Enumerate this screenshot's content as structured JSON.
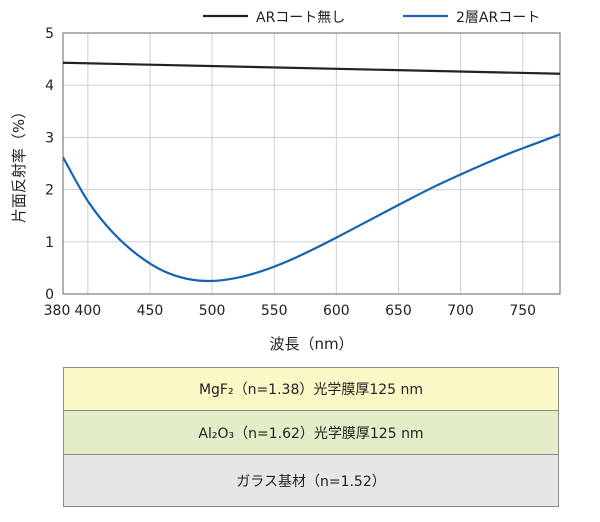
{
  "chart_data": {
    "type": "line",
    "xlabel": "波長（nm）",
    "ylabel": "片面反射率（%）",
    "xlim": [
      380,
      780
    ],
    "ylim": [
      0,
      5
    ],
    "x_ticks": [
      380,
      400,
      450,
      500,
      550,
      600,
      650,
      700,
      750
    ],
    "y_ticks": [
      0,
      1,
      2,
      3,
      4,
      5
    ],
    "grid": true,
    "legend": "top",
    "series": [
      {
        "name": "ARコート無し",
        "color": "#222222",
        "x": [
          380,
          780
        ],
        "y": [
          4.43,
          4.22
        ]
      },
      {
        "name": "2層ARコート",
        "color": "#1464b4",
        "x": [
          380,
          400,
          420,
          440,
          460,
          480,
          500,
          520,
          540,
          560,
          580,
          600,
          620,
          640,
          660,
          680,
          700,
          720,
          740,
          760,
          780
        ],
        "y": [
          2.62,
          1.78,
          1.18,
          0.75,
          0.45,
          0.29,
          0.25,
          0.31,
          0.44,
          0.62,
          0.84,
          1.08,
          1.33,
          1.58,
          1.83,
          2.07,
          2.29,
          2.5,
          2.7,
          2.88,
          3.06
        ]
      }
    ]
  },
  "layers": [
    {
      "label": "MgF₂（n=1.38）光学膜厚125 nm",
      "color": "#fbf8c8"
    },
    {
      "label": "Al₂O₃（n=1.62）光学膜厚125 nm",
      "color": "#e3eec9"
    },
    {
      "label": "ガラス基材（n=1.52）",
      "color": "#e6e6e6"
    }
  ]
}
